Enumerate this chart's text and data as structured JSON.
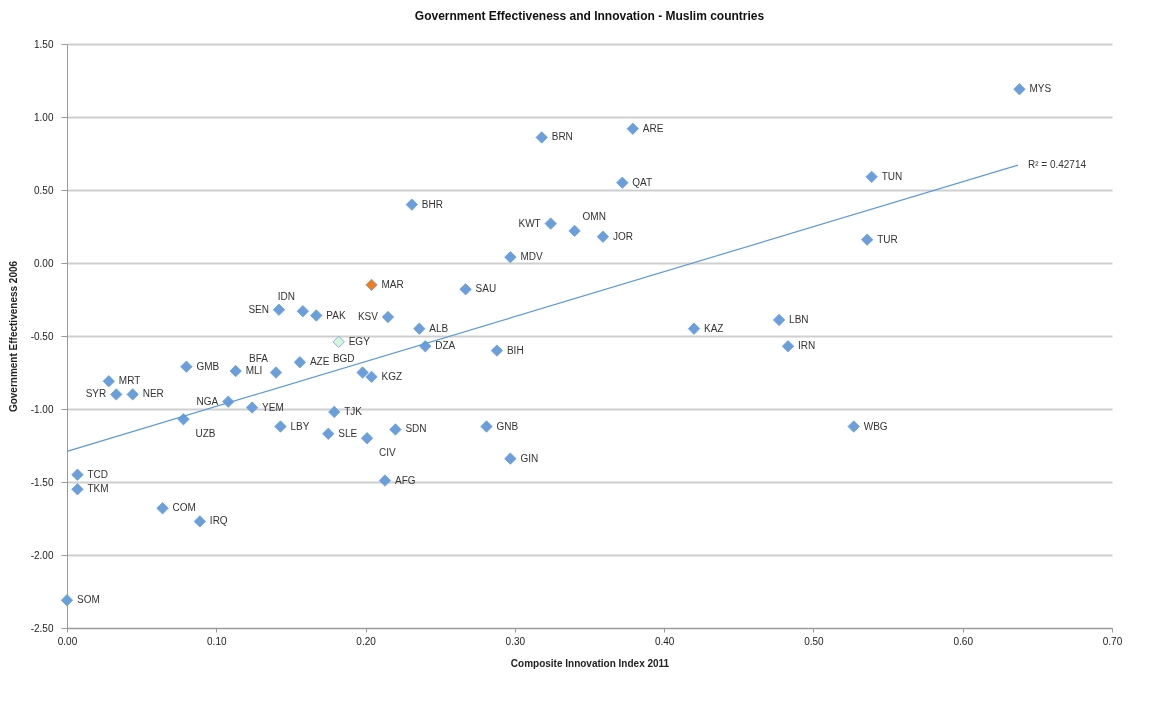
{
  "chart_data": {
    "type": "scatter",
    "title": "Government Effectiveness and Innovation - Muslim countries",
    "xlabel": "Composite Innovation Index 2011",
    "ylabel": "Government Effectiveness 2006",
    "xlim": [
      0,
      0.7
    ],
    "ylim": [
      -2.5,
      1.5
    ],
    "xticks": [
      {
        "value": 0,
        "label": "0.00"
      },
      {
        "value": 0.1,
        "label": "0.10"
      },
      {
        "value": 0.2,
        "label": "0.20"
      },
      {
        "value": 0.3,
        "label": "0.30"
      },
      {
        "value": 0.4,
        "label": "0.40"
      },
      {
        "value": 0.5,
        "label": "0.50"
      },
      {
        "value": 0.6,
        "label": "0.60"
      },
      {
        "value": 0.7,
        "label": "0.70"
      }
    ],
    "yticks": [
      {
        "value": -2.5,
        "label": "-2.50"
      },
      {
        "value": -2,
        "label": "-2.00"
      },
      {
        "value": -1.5,
        "label": "-1.50"
      },
      {
        "value": -1,
        "label": "-1.00"
      },
      {
        "value": -0.5,
        "label": "-0.50"
      },
      {
        "value": 0,
        "label": "0.00"
      },
      {
        "value": 0.5,
        "label": "0.50"
      },
      {
        "value": 1,
        "label": "1.00"
      },
      {
        "value": 1.5,
        "label": "1.50"
      }
    ],
    "grid": "y",
    "series": [
      {
        "color": "#6a9fdc",
        "marker": "diamond",
        "x": [
          0.638,
          0.379,
          0.318,
          0.372,
          0.539,
          0.231,
          0.324,
          0.34,
          0.359,
          0.536,
          0.297,
          0.204,
          0.267,
          0.142,
          0.158,
          0.167,
          0.215,
          0.236,
          0.42,
          0.477,
          0.182,
          0.24,
          0.483,
          0.288,
          0.156,
          0.08,
          0.113,
          0.14,
          0.198,
          0.204,
          0.028,
          0.033,
          0.044,
          0.108,
          0.124,
          0.078,
          0.179,
          0.143,
          0.175,
          0.201,
          0.22,
          0.281,
          0.297,
          0.527,
          0.007,
          0.007,
          0.213,
          0.064,
          0.089,
          0.0
        ],
        "values": [
          1.19,
          0.92,
          0.86,
          0.55,
          0.59,
          0.4,
          0.27,
          0.22,
          0.18,
          0.16,
          0.04,
          -0.15,
          -0.18,
          -0.32,
          -0.33,
          -0.36,
          -0.37,
          -0.45,
          -0.45,
          -0.39,
          -0.54,
          -0.57,
          -0.57,
          -0.6,
          -0.68,
          -0.71,
          -0.74,
          -0.75,
          -0.75,
          -0.78,
          -0.81,
          -0.9,
          -0.9,
          -0.95,
          -0.99,
          -1.07,
          -1.02,
          -1.12,
          -1.17,
          -1.2,
          -1.14,
          -1.12,
          -1.34,
          -1.12,
          -1.45,
          -1.55,
          -1.49,
          -1.68,
          -1.77,
          -2.31
        ],
        "colors": [
          "#6a9fdc",
          "#6a9fdc",
          "#6a9fdc",
          "#6a9fdc",
          "#6a9fdc",
          "#6a9fdc",
          "#6a9fdc",
          "#6a9fdc",
          "#6a9fdc",
          "#6a9fdc",
          "#6a9fdc",
          "#f07c1a",
          "#6a9fdc",
          "#6a9fdc",
          "#6a9fdc",
          "#6a9fdc",
          "#6a9fdc",
          "#6a9fdc",
          "#6a9fdc",
          "#6a9fdc",
          "#d6f3dc",
          "#6a9fdc",
          "#6a9fdc",
          "#6a9fdc",
          "#6a9fdc",
          "#6a9fdc",
          "#6a9fdc",
          "#6a9fdc",
          "#6a9fdc",
          "#6a9fdc",
          "#6a9fdc",
          "#6a9fdc",
          "#6a9fdc",
          "#6a9fdc",
          "#6a9fdc",
          "#6a9fdc",
          "#6a9fdc",
          "#6a9fdc",
          "#6a9fdc",
          "#6a9fdc",
          "#6a9fdc",
          "#6a9fdc",
          "#6a9fdc",
          "#6a9fdc",
          "#6a9fdc",
          "#6a9fdc",
          "#6a9fdc",
          "#6a9fdc",
          "#6a9fdc",
          "#6a9fdc"
        ]
      },
      {
        "type": "line",
        "color": "#5b9bd5",
        "x": [
          0,
          0.637
        ],
        "values": [
          -1.29,
          0.67
        ]
      }
    ],
    "annotations": [
      {
        "text": "MYS",
        "x": 0.638,
        "y": 1.19
      },
      {
        "text": "ARE",
        "x": 0.379,
        "y": 0.92
      },
      {
        "text": "BRN",
        "x": 0.318,
        "y": 0.86
      },
      {
        "text": "QAT",
        "x": 0.372,
        "y": 0.55
      },
      {
        "text": "TUN",
        "x": 0.539,
        "y": 0.59
      },
      {
        "text": "BHR",
        "x": 0.231,
        "y": 0.4
      },
      {
        "text": "KWT",
        "x": 0.324,
        "y": 0.27
      },
      {
        "text": "OMN",
        "x": 0.34,
        "y": 0.22
      },
      {
        "text": "JOR",
        "x": 0.359,
        "y": 0.18
      },
      {
        "text": "TUR",
        "x": 0.536,
        "y": 0.16
      },
      {
        "text": "MDV",
        "x": 0.297,
        "y": 0.04
      },
      {
        "text": "MAR",
        "x": 0.204,
        "y": -0.15
      },
      {
        "text": "SAU",
        "x": 0.267,
        "y": -0.18
      },
      {
        "text": "SEN",
        "x": 0.142,
        "y": -0.32
      },
      {
        "text": "IDN",
        "x": 0.158,
        "y": -0.33
      },
      {
        "text": "PAK",
        "x": 0.167,
        "y": -0.36
      },
      {
        "text": "KSV",
        "x": 0.215,
        "y": -0.37
      },
      {
        "text": "ALB",
        "x": 0.236,
        "y": -0.45
      },
      {
        "text": "KAZ",
        "x": 0.42,
        "y": -0.45
      },
      {
        "text": "LBN",
        "x": 0.477,
        "y": -0.39
      },
      {
        "text": "EGY",
        "x": 0.182,
        "y": -0.54
      },
      {
        "text": "DZA",
        "x": 0.24,
        "y": -0.57
      },
      {
        "text": "IRN",
        "x": 0.483,
        "y": -0.57
      },
      {
        "text": "BIH",
        "x": 0.288,
        "y": -0.6
      },
      {
        "text": "AZE",
        "x": 0.156,
        "y": -0.68
      },
      {
        "text": "GMB",
        "x": 0.08,
        "y": -0.71
      },
      {
        "text": "MLI",
        "x": 0.113,
        "y": -0.74
      },
      {
        "text": "BFA",
        "x": 0.14,
        "y": -0.75
      },
      {
        "text": "BGD",
        "x": 0.198,
        "y": -0.75
      },
      {
        "text": "KGZ",
        "x": 0.204,
        "y": -0.78
      },
      {
        "text": "MRT",
        "x": 0.028,
        "y": -0.81
      },
      {
        "text": "SYR",
        "x": 0.033,
        "y": -0.9
      },
      {
        "text": "NER",
        "x": 0.044,
        "y": -0.9
      },
      {
        "text": "NGA",
        "x": 0.108,
        "y": -0.95
      },
      {
        "text": "YEM",
        "x": 0.124,
        "y": -0.99
      },
      {
        "text": "UZB",
        "x": 0.078,
        "y": -1.07
      },
      {
        "text": "TJK",
        "x": 0.179,
        "y": -1.02
      },
      {
        "text": "LBY",
        "x": 0.143,
        "y": -1.12
      },
      {
        "text": "SLE",
        "x": 0.175,
        "y": -1.17
      },
      {
        "text": "CIV",
        "x": 0.201,
        "y": -1.2
      },
      {
        "text": "SDN",
        "x": 0.22,
        "y": -1.14
      },
      {
        "text": "GNB",
        "x": 0.281,
        "y": -1.12
      },
      {
        "text": "GIN",
        "x": 0.297,
        "y": -1.34
      },
      {
        "text": "WBG",
        "x": 0.527,
        "y": -1.12
      },
      {
        "text": "TCD",
        "x": 0.007,
        "y": -1.45
      },
      {
        "text": "TKM",
        "x": 0.007,
        "y": -1.55
      },
      {
        "text": "AFG",
        "x": 0.213,
        "y": -1.49
      },
      {
        "text": "COM",
        "x": 0.064,
        "y": -1.68
      },
      {
        "text": "IRQ",
        "x": 0.089,
        "y": -1.77
      },
      {
        "text": "SOM",
        "x": 0.0,
        "y": -2.31
      },
      {
        "text": "R² = 0.42714",
        "x": 0.637,
        "y": 0.67
      }
    ]
  }
}
